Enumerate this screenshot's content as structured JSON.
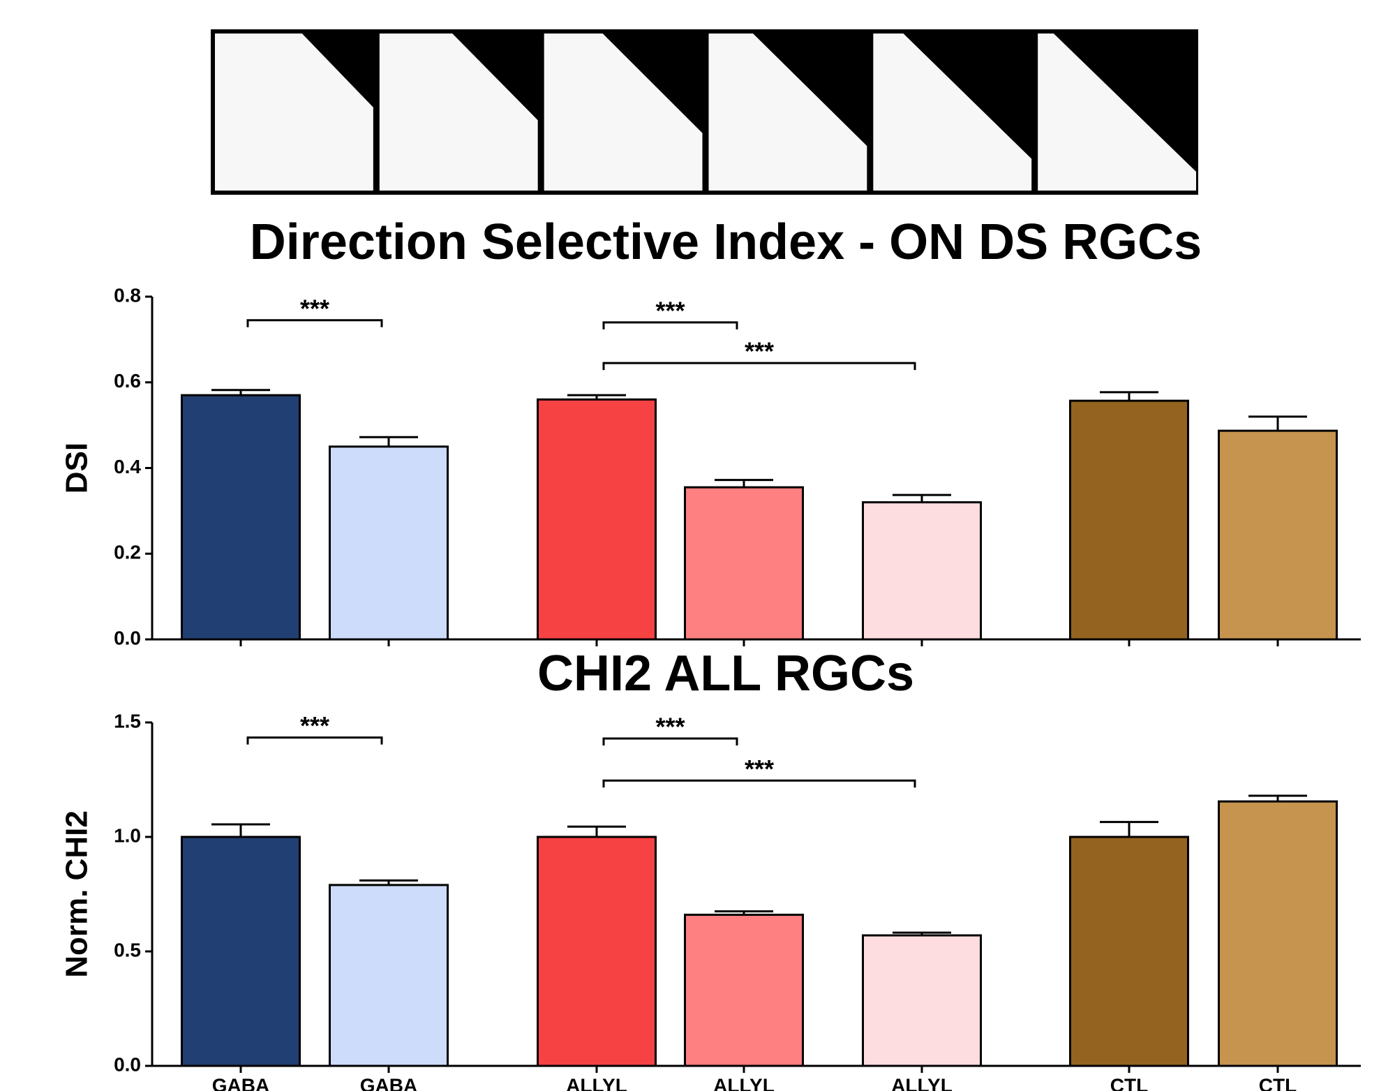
{
  "chart_data": [
    {
      "type": "bar",
      "title": "Direction Selective Index - ON DS RGCs",
      "y_label": "DSI",
      "categories": [
        null,
        null,
        null,
        null,
        null,
        null,
        null
      ],
      "values": [
        0.57,
        0.45,
        0.56,
        0.355,
        0.32,
        0.557,
        0.487
      ],
      "errors": [
        0.012,
        0.022,
        0.01,
        0.017,
        0.017,
        0.02,
        0.033
      ],
      "colors": [
        "#223f73",
        "#cddcfb",
        "#f74244",
        "#fe8080",
        "#fddddf",
        "#946320",
        "#c6944f"
      ],
      "ylim": [
        0,
        0.8
      ],
      "yticks": [
        {
          "value": 0,
          "label": "0.0"
        },
        0.2,
        0.4,
        0.6,
        0.8
      ],
      "annotations": [
        {
          "text": "***",
          "from": 0,
          "to": 1,
          "y": 0.745
        },
        {
          "text": "***",
          "from": 2,
          "to": 3,
          "y": 0.74
        },
        {
          "text": "***",
          "from": 2,
          "to": 4,
          "y": 0.645
        }
      ]
    },
    {
      "type": "bar",
      "title": "CHI2 ALL RGCs",
      "y_label": "Norm. CHI2",
      "categories": [
        "GABA",
        "GABA",
        "ALLYL",
        "ALLYL",
        "ALLYL",
        "CTL",
        "CTL"
      ],
      "values": [
        1.0,
        0.79,
        1.0,
        0.66,
        0.57,
        1.0,
        1.155
      ],
      "errors": [
        0.055,
        0.02,
        0.045,
        0.015,
        0.012,
        0.065,
        0.025
      ],
      "colors": [
        "#223f73",
        "#cddcfb",
        "#f74244",
        "#fe8080",
        "#fddddf",
        "#946320",
        "#c6944f"
      ],
      "ylim": [
        0,
        1.5
      ],
      "yticks": [
        {
          "value": 0,
          "label": "0.0"
        },
        0.5,
        {
          "value": 1,
          "label": "1.0"
        },
        1.5
      ],
      "annotations": [
        {
          "text": "***",
          "from": 0,
          "to": 1,
          "y": 1.434
        },
        {
          "text": "***",
          "from": 2,
          "to": 3,
          "y": 1.43
        },
        {
          "text": "***",
          "from": 2,
          "to": 4,
          "y": 1.246
        }
      ]
    }
  ]
}
